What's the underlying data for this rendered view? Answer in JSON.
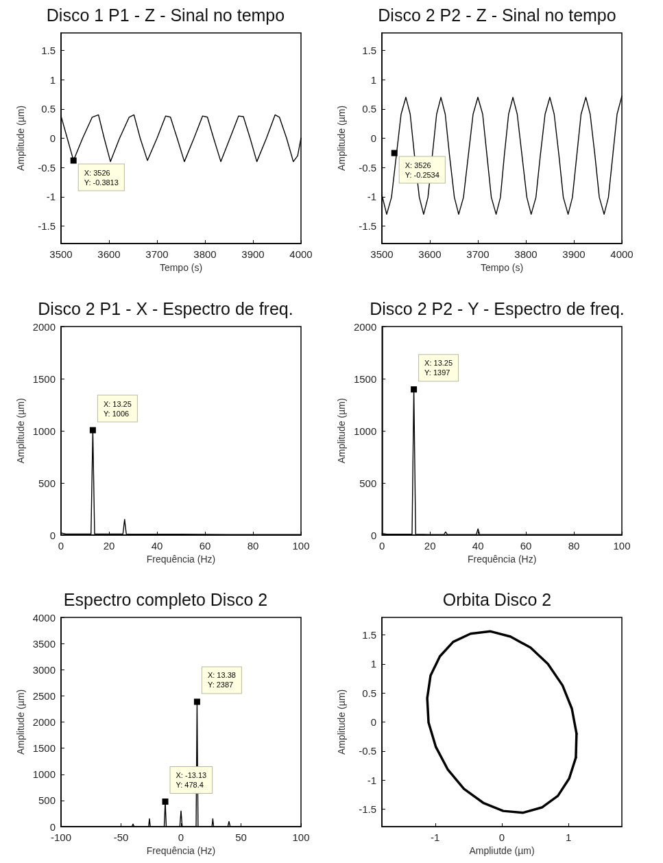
{
  "chart_data": [
    {
      "type": "line",
      "title": "Disco 1 P1 - Z - Sinal no tempo",
      "xlabel": "Tempo (s)",
      "ylabel": "Amplitude (µm)",
      "marker": "none",
      "xlim": [
        3500,
        4000
      ],
      "xticks": [
        3500,
        3600,
        3700,
        3800,
        3900,
        4000
      ],
      "ylim": [
        -1.8,
        1.8
      ],
      "yticks": [
        -1.5,
        -1,
        -0.5,
        0,
        0.5,
        1,
        1.5
      ],
      "annotations": [
        {
          "text": "X: 3526\nY: -0.3813",
          "x": 3526,
          "y": -0.3813
        }
      ],
      "series": [
        {
          "color": "#000000",
          "x": [
            3500,
            3513,
            3526,
            3545,
            3565,
            3578,
            3590,
            3603,
            3622,
            3642,
            3652,
            3665,
            3680,
            3700,
            3718,
            3728,
            3742,
            3757,
            3777,
            3795,
            3805,
            3818,
            3833,
            3852,
            3870,
            3880,
            3894,
            3908,
            3928,
            3946,
            3955,
            3970,
            3984,
            3993,
            4000
          ],
          "values": [
            0.38,
            0,
            -0.38,
            0,
            0.36,
            0.4,
            0,
            -0.4,
            0,
            0.36,
            0.4,
            0,
            -0.38,
            0,
            0.38,
            0.36,
            0,
            -0.4,
            0,
            0.38,
            0.36,
            0,
            -0.4,
            0,
            0.38,
            0.37,
            0,
            -0.4,
            0,
            0.4,
            0.36,
            0,
            -0.4,
            -0.3,
            0
          ]
        }
      ]
    },
    {
      "type": "line",
      "title": "Disco 2 P2 - Z - Sinal no tempo",
      "xlabel": "Tempo (s)",
      "ylabel": "Amplitude (µm)",
      "marker": "none",
      "xlim": [
        3500,
        4000
      ],
      "xticks": [
        3500,
        3600,
        3700,
        3800,
        3900,
        4000
      ],
      "ylim": [
        -1.8,
        1.8
      ],
      "yticks": [
        -1.5,
        -1,
        -0.5,
        0,
        0.5,
        1,
        1.5
      ],
      "annotations": [
        {
          "text": "X: 3526\nY: -0.2534",
          "x": 3526,
          "y": -0.2534
        }
      ],
      "series": [
        {
          "color": "#000000",
          "x": [
            3500,
            3510,
            3520,
            3530,
            3540,
            3550,
            3559,
            3568,
            3578,
            3587,
            3596,
            3605,
            3614,
            3623,
            3632,
            3641,
            3651,
            3660,
            3670,
            3680,
            3690,
            3700,
            3710,
            3719,
            3728,
            3738,
            3747,
            3755,
            3764,
            3773,
            3782,
            3792,
            3802,
            3811,
            3821,
            3830,
            3840,
            3850,
            3859,
            3869,
            3878,
            3888,
            3897,
            3906,
            3915,
            3925,
            3934,
            3944,
            3953,
            3963,
            3972,
            3981,
            3990,
            4000
          ],
          "values": [
            -0.97,
            -1.3,
            -1.01,
            -0.3,
            0.41,
            0.7,
            0.41,
            -0.3,
            -1.01,
            -1.3,
            -1.01,
            -0.3,
            0.41,
            0.7,
            0.41,
            -0.3,
            -1.01,
            -1.3,
            -1.01,
            -0.3,
            0.41,
            0.7,
            0.41,
            -0.3,
            -1.01,
            -1.3,
            -1.01,
            -0.3,
            0.41,
            0.7,
            0.41,
            -0.3,
            -1.01,
            -1.3,
            -1.01,
            -0.3,
            0.41,
            0.7,
            0.41,
            -0.3,
            -1.01,
            -1.3,
            -1.01,
            -0.3,
            0.41,
            0.7,
            0.41,
            -0.3,
            -1.01,
            -1.3,
            -1.01,
            -0.3,
            0.41,
            0.72
          ]
        }
      ]
    },
    {
      "type": "line",
      "title": "Disco 2 P1 - X - Espectro de freq.",
      "xlabel": "Frequência (Hz)",
      "ylabel": "Amplitude (µm)",
      "marker": "none",
      "xlim": [
        0,
        100
      ],
      "xticks": [
        0,
        20,
        40,
        60,
        80,
        100
      ],
      "ylim": [
        0,
        2000
      ],
      "yticks": [
        0,
        500,
        1000,
        1500,
        2000
      ],
      "annotations": [
        {
          "text": "X: 13.25\nY: 1006",
          "x": 13.25,
          "y": 1006
        }
      ],
      "series": [
        {
          "color": "#000000",
          "x": [
            0,
            2,
            6,
            12.5,
            13.25,
            14,
            20,
            25.8,
            26.5,
            27.2,
            35,
            50,
            70,
            90,
            100
          ],
          "values": [
            20,
            10,
            10,
            10,
            1006,
            10,
            10,
            10,
            150,
            10,
            8,
            8,
            6,
            6,
            5
          ]
        }
      ]
    },
    {
      "type": "line",
      "title": "Disco 2 P2 - Y - Espectro de freq.",
      "xlabel": "Frequência (Hz)",
      "ylabel": "Amplitude (µm)",
      "marker": "none",
      "xlim": [
        0,
        100
      ],
      "xticks": [
        0,
        20,
        40,
        60,
        80,
        100
      ],
      "ylim": [
        0,
        2000
      ],
      "yticks": [
        0,
        500,
        1000,
        1500,
        2000
      ],
      "annotations": [
        {
          "text": "X: 13.25\nY: 1397",
          "x": 13.25,
          "y": 1397
        }
      ],
      "series": [
        {
          "color": "#000000",
          "x": [
            0,
            2,
            6,
            12.5,
            13.25,
            14,
            20,
            25.8,
            26.5,
            27.2,
            39.3,
            40,
            40.7,
            60,
            80,
            100
          ],
          "values": [
            15,
            8,
            8,
            8,
            1397,
            8,
            6,
            6,
            30,
            6,
            6,
            60,
            6,
            5,
            5,
            5
          ]
        }
      ]
    },
    {
      "type": "line",
      "title": "Espectro completo Disco 2",
      "xlabel": "Frequência (Hz)",
      "ylabel": "Amplitude (µm)",
      "marker": "none",
      "xlim": [
        -100,
        100
      ],
      "xticks": [
        -100,
        -50,
        0,
        50,
        100
      ],
      "ylim": [
        0,
        4000
      ],
      "yticks": [
        0,
        500,
        1000,
        1500,
        2000,
        2500,
        3000,
        3500,
        4000
      ],
      "annotations": [
        {
          "text": "X: -13.13\nY: 478.4",
          "x": -13.13,
          "y": 478.4
        },
        {
          "text": "X: 13.38\nY: 2387",
          "x": 13.38,
          "y": 2387
        }
      ],
      "series": [
        {
          "color": "#000000",
          "x": [
            -100,
            -60,
            -41,
            -40,
            -39,
            -27,
            -26.3,
            -25.6,
            -14,
            -13.13,
            -12.3,
            -1,
            0,
            1,
            12.6,
            13.38,
            14.2,
            25.8,
            26.5,
            27.2,
            39,
            40,
            41,
            60,
            100
          ],
          "values": [
            0,
            0,
            0,
            50,
            0,
            0,
            150,
            0,
            0,
            478.4,
            0,
            0,
            300,
            0,
            0,
            2387,
            0,
            0,
            150,
            0,
            0,
            100,
            0,
            0,
            0
          ]
        }
      ]
    },
    {
      "type": "line",
      "title": "Orbita Disco 2",
      "xlabel": "Ampliutde (µm)",
      "ylabel": "Amplitude (µm)",
      "marker": "none",
      "xlim": [
        -1.8,
        1.8
      ],
      "xticks": [
        -1,
        0,
        1
      ],
      "ylim": [
        -1.8,
        1.8
      ],
      "yticks": [
        -1.5,
        -1,
        -0.5,
        0,
        0.5,
        1,
        1.5
      ],
      "series": [
        {
          "color": "#000000",
          "x": [
            1.12,
            1.05,
            0.91,
            0.69,
            0.43,
            0.13,
            -0.17,
            -0.47,
            -0.73,
            -0.93,
            -1.07,
            -1.12,
            -1.1,
            -0.99,
            -0.81,
            -0.57,
            -0.28,
            0.02,
            0.32,
            0.6,
            0.84,
            1.01,
            1.11
          ],
          "values": [
            -0.2,
            0.23,
            0.63,
            1,
            1.28,
            1.47,
            1.56,
            1.52,
            1.38,
            1.13,
            0.8,
            0.41,
            -0.01,
            -0.43,
            -0.82,
            -1.15,
            -1.39,
            -1.53,
            -1.56,
            -1.47,
            -1.27,
            -0.97,
            -0.61
          ]
        }
      ]
    }
  ]
}
